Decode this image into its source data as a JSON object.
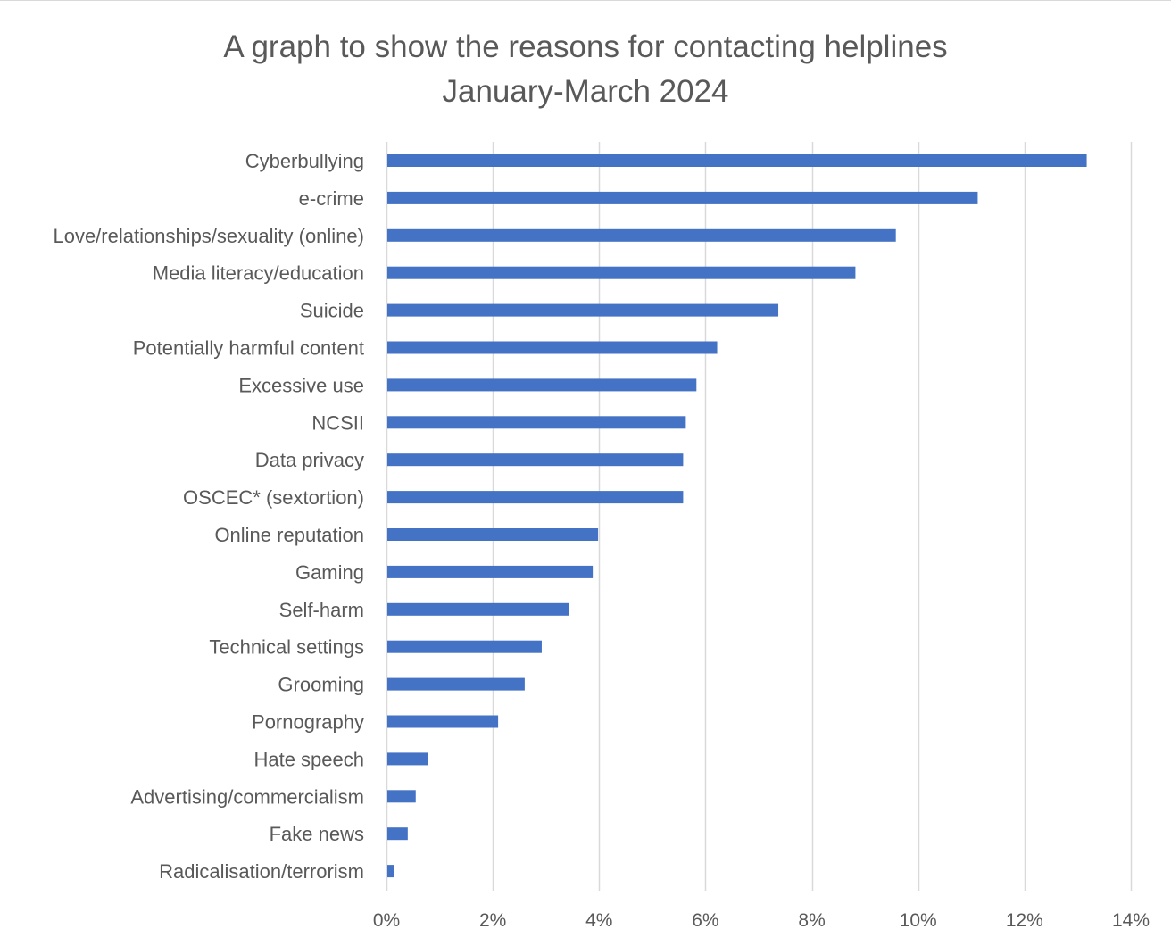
{
  "chart_data": {
    "type": "bar",
    "orientation": "horizontal",
    "title": "A graph to show the reasons for contacting helplines",
    "subtitle": "January-March 2024",
    "xlabel": "",
    "ylabel": "",
    "xlim": [
      0,
      14
    ],
    "x_ticks": [
      "0%",
      "2%",
      "4%",
      "6%",
      "8%",
      "10%",
      "12%",
      "14%"
    ],
    "x_tick_values": [
      0,
      2,
      4,
      6,
      8,
      10,
      12,
      14
    ],
    "unit": "%",
    "grid": "vertical",
    "legend": "none",
    "bar_color": "#4472c4",
    "grid_color": "#d9d9d9",
    "text_color": "#595959",
    "categories": [
      "Cyberbullying",
      "e-crime",
      "Love/relationships/sexuality (online)",
      "Media literacy/education",
      "Suicide",
      "Potentially harmful content",
      "Excessive use",
      "NCSII",
      "Data privacy",
      "OSCEC* (sextortion)",
      "Online reputation",
      "Gaming",
      "Self-harm",
      "Technical settings",
      "Grooming",
      "Pornography",
      "Hate speech",
      "Advertising/commercialism",
      "Fake news",
      "Radicalisation/terrorism"
    ],
    "values": [
      13.17,
      11.12,
      9.58,
      8.82,
      7.37,
      6.22,
      5.83,
      5.63,
      5.58,
      5.58,
      3.98,
      3.88,
      3.43,
      2.92,
      2.6,
      2.1,
      0.78,
      0.55,
      0.4,
      0.15
    ]
  }
}
